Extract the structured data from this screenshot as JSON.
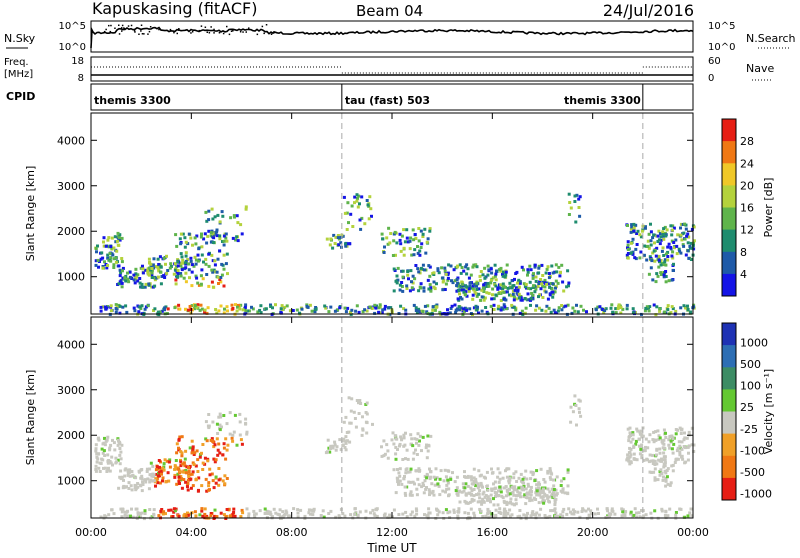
{
  "header": {
    "station": "Kapuskasing (fitACF)",
    "beam": "Beam 04",
    "date": "24/Jul/2016"
  },
  "noise_panel": {
    "left_label": "N.Sky",
    "left_ticks": [
      "10^5",
      "10^0"
    ],
    "right_label": "N.Search",
    "right_ticks": [
      "10^5",
      "10^0"
    ]
  },
  "freq_panel": {
    "left_label_1": "Freq.",
    "left_label_2": "[MHz]",
    "left_ticks": [
      "18",
      "8"
    ],
    "right_label": "Nave",
    "right_ticks": [
      "60",
      "0"
    ]
  },
  "cpid_panel": {
    "label": "CPID",
    "segments": [
      {
        "label": "themis 3300",
        "start_h": 0,
        "end_h": 10
      },
      {
        "label": "tau (fast) 503",
        "start_h": 10,
        "end_h": 22
      },
      {
        "label": "themis 3300",
        "start_h": 22,
        "end_h": 24
      }
    ]
  },
  "x_axis": {
    "label": "Time UT",
    "ticks": [
      "00:00",
      "04:00",
      "08:00",
      "12:00",
      "16:00",
      "20:00",
      "00:00"
    ],
    "range_hours": [
      0,
      24
    ]
  },
  "chart_data": [
    {
      "type": "heatmap",
      "name": "power",
      "ylabel": "Slant Range [km]",
      "ylim": [
        180,
        4600
      ],
      "yticks": [
        1000,
        2000,
        3000,
        4000
      ],
      "colorbar_label": "Power [dB]",
      "colorbar_ticks": [
        "4",
        "8",
        "12",
        "16",
        "20",
        "24",
        "28"
      ],
      "colors": [
        "#1414e6",
        "#1e5aa8",
        "#1e8c6e",
        "#5fb44b",
        "#b4d23c",
        "#f0c828",
        "#f07814",
        "#e61e14"
      ],
      "dashed_time_markers_h": [
        10,
        22
      ]
    },
    {
      "type": "heatmap",
      "name": "velocity",
      "ylabel": "Slant Range [km]",
      "ylim": [
        180,
        4600
      ],
      "yticks": [
        1000,
        2000,
        3000,
        4000
      ],
      "colorbar_label": "Velocity [m s⁻¹]",
      "colorbar_ticks": [
        "1000",
        "500",
        "100",
        "25",
        "-25",
        "-100",
        "-500",
        "-1000"
      ],
      "colors": [
        "#1e32b4",
        "#2d6eb4",
        "#3c8c64",
        "#64c832",
        "#c8c8c0",
        "#f0a028",
        "#f07814",
        "#e61e14"
      ],
      "dashed_time_markers_h": [
        10,
        22
      ]
    }
  ]
}
